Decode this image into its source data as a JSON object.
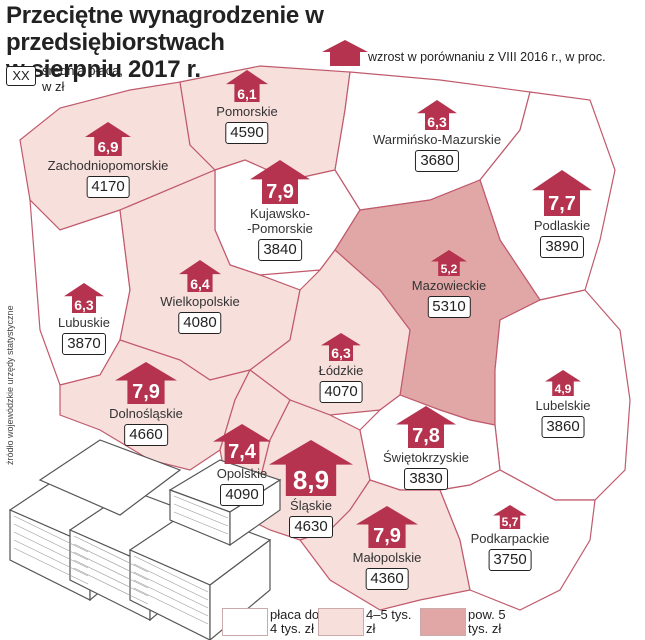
{
  "title_line1": "Przeciętne wynagrodzenie w przedsiębiorstwach",
  "title_line2": "w sierpniu 2017 r.",
  "legend": {
    "box_symbol": "XX",
    "salary_label": "średnia płaca, w zł",
    "growth_label": "wzrost w porównaniu z VIII 2016 r., w proc."
  },
  "source": "źródło wojewódzkie urzędy statystyczne",
  "colors": {
    "white": "#ffffff",
    "light": "#f7dfdc",
    "dark": "#e1a7a6",
    "arrow": "#b5334e",
    "border": "#c05a6c"
  },
  "categories": [
    {
      "label": "płaca do 4 tys. zł",
      "fill": "#ffffff"
    },
    {
      "label": "4–5 tys. zł",
      "fill": "#f7dfdc"
    },
    {
      "label": "pow. 5 tys. zł",
      "fill": "#e1a7a6"
    }
  ],
  "regions": [
    {
      "name": "Pomorskie",
      "growth": "6,1",
      "salary": "4590",
      "category": "4–5 tys. zł"
    },
    {
      "name": "Warmińsko-Mazurskie",
      "growth": "6,3",
      "salary": "3680",
      "category": "płaca do 4 tys. zł"
    },
    {
      "name": "Zachodniopomorskie",
      "growth": "6,9",
      "salary": "4170",
      "category": "4–5 tys. zł"
    },
    {
      "name": "Kujawsko-\n-Pomorskie",
      "growth": "7,9",
      "salary": "3840",
      "category": "płaca do 4 tys. zł"
    },
    {
      "name": "Podlaskie",
      "growth": "7,7",
      "salary": "3890",
      "category": "płaca do 4 tys. zł"
    },
    {
      "name": "Mazowieckie",
      "growth": "5,2",
      "salary": "5310",
      "category": "pow. 5 tys. zł"
    },
    {
      "name": "Lubuskie",
      "growth": "6,3",
      "salary": "3870",
      "category": "płaca do 4 tys. zł"
    },
    {
      "name": "Wielkopolskie",
      "growth": "6,4",
      "salary": "4080",
      "category": "4–5 tys. zł"
    },
    {
      "name": "Łódzkie",
      "growth": "6,3",
      "salary": "4070",
      "category": "4–5 tys. zł"
    },
    {
      "name": "Dolnośląskie",
      "growth": "7,9",
      "salary": "4660",
      "category": "4–5 tys. zł"
    },
    {
      "name": "Lubelskie",
      "growth": "4,9",
      "salary": "3860",
      "category": "płaca do 4 tys. zł"
    },
    {
      "name": "Opolskie",
      "growth": "7,4",
      "salary": "4090",
      "category": "4–5 tys. zł"
    },
    {
      "name": "Śląskie",
      "growth": "8,9",
      "salary": "4630",
      "category": "4–5 tys. zł"
    },
    {
      "name": "Świętokrzyskie",
      "growth": "7,8",
      "salary": "3830",
      "category": "płaca do 4 tys. zł"
    },
    {
      "name": "Małopolskie",
      "growth": "7,9",
      "salary": "4360",
      "category": "4–5 tys. zł"
    },
    {
      "name": "Podkarpackie",
      "growth": "5,7",
      "salary": "3750",
      "category": "płaca do 4 tys. zł"
    }
  ]
}
